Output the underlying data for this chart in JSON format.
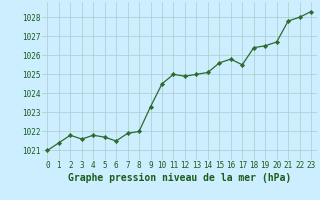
{
  "x": [
    0,
    1,
    2,
    3,
    4,
    5,
    6,
    7,
    8,
    9,
    10,
    11,
    12,
    13,
    14,
    15,
    16,
    17,
    18,
    19,
    20,
    21,
    22,
    23
  ],
  "y": [
    1021.0,
    1021.4,
    1021.8,
    1021.6,
    1021.8,
    1021.7,
    1021.5,
    1021.9,
    1022.0,
    1023.3,
    1024.5,
    1025.0,
    1024.9,
    1025.0,
    1025.1,
    1025.6,
    1025.8,
    1025.5,
    1026.4,
    1026.5,
    1026.7,
    1027.8,
    1028.0,
    1028.3
  ],
  "line_color": "#2d6a2d",
  "marker_color": "#2d6a2d",
  "bg_color": "#cceeff",
  "grid_color": "#aacccc",
  "xlabel": "Graphe pression niveau de la mer (hPa)",
  "xlabel_color": "#1a5c1a",
  "tick_color": "#1a5c1a",
  "ylim": [
    1020.5,
    1028.8
  ],
  "xlim": [
    -0.5,
    23.5
  ],
  "yticks": [
    1021,
    1022,
    1023,
    1024,
    1025,
    1026,
    1027,
    1028
  ],
  "xticks": [
    0,
    1,
    2,
    3,
    4,
    5,
    6,
    7,
    8,
    9,
    10,
    11,
    12,
    13,
    14,
    15,
    16,
    17,
    18,
    19,
    20,
    21,
    22,
    23
  ],
  "tick_fontsize": 5.5,
  "xlabel_fontsize": 7.0,
  "lw": 0.9,
  "markersize": 2.2
}
